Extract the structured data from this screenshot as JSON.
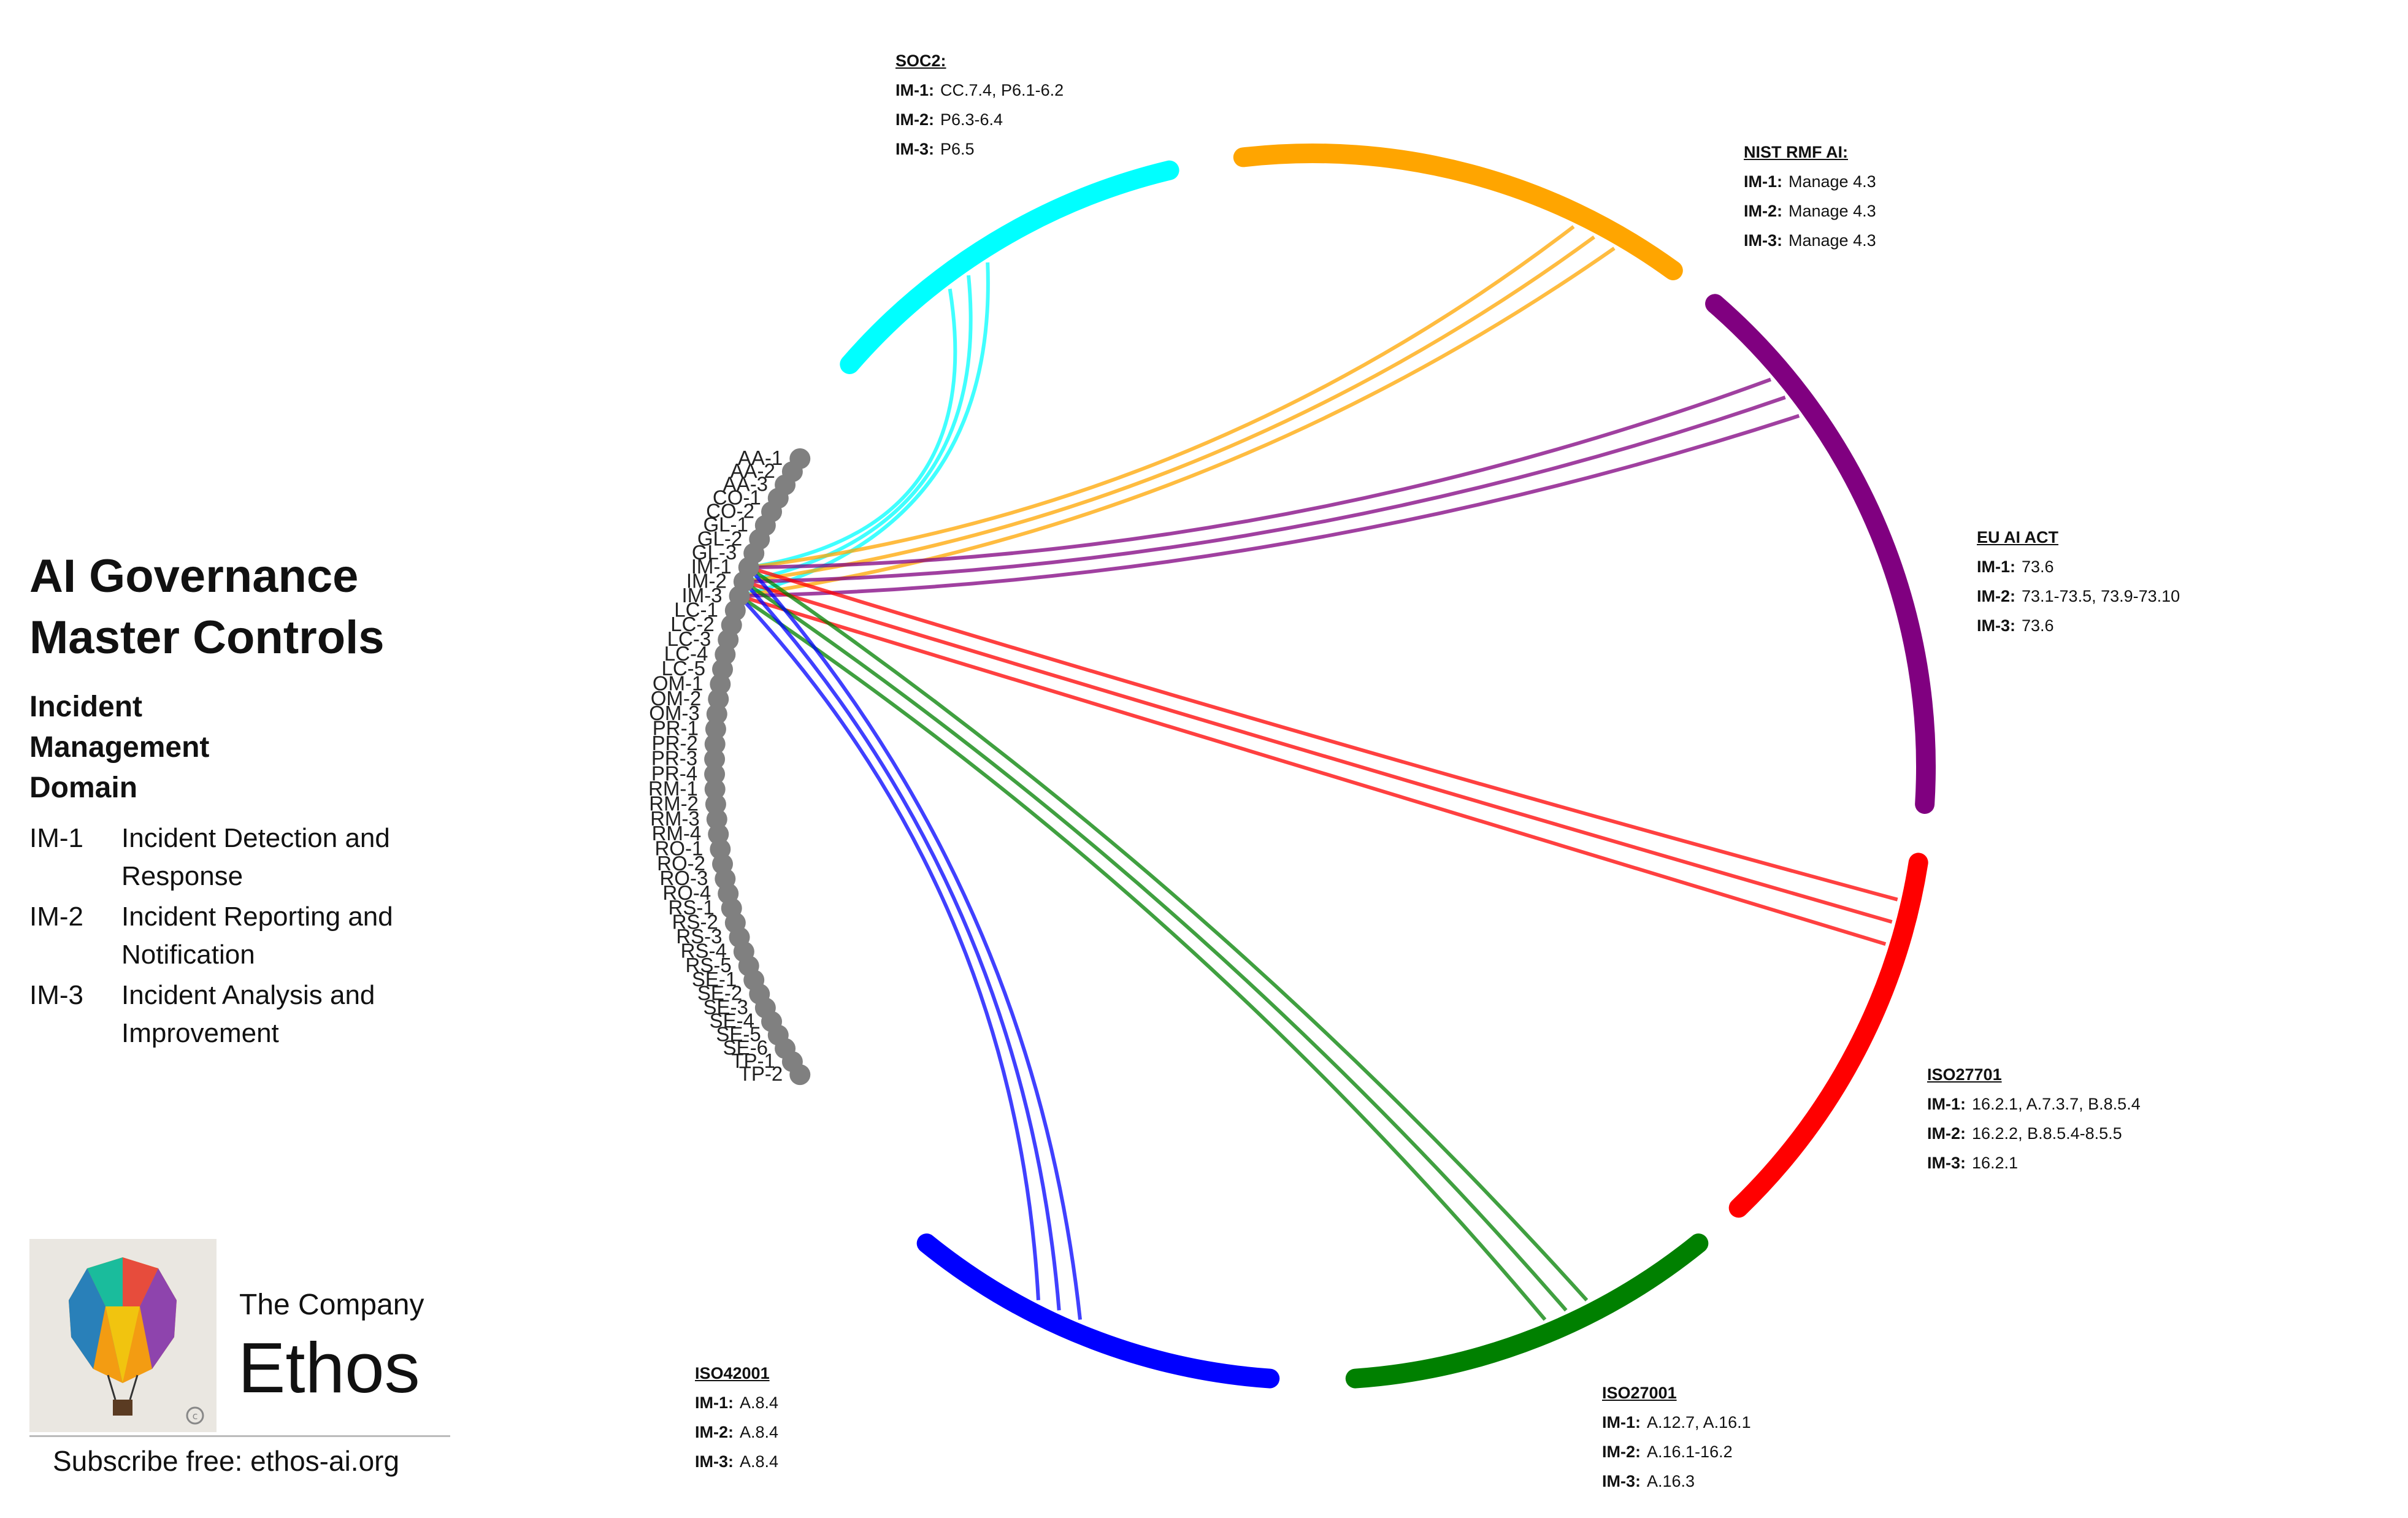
{
  "sidebar": {
    "title_line1": "AI Governance",
    "title_line2": "Master Controls",
    "domain_heading": "Incident Management Domain",
    "controls": [
      {
        "id": "IM-1",
        "desc": "Incident Detection and Response"
      },
      {
        "id": "IM-2",
        "desc": "Incident Reporting and Notification"
      },
      {
        "id": "IM-3",
        "desc": "Incident Analysis and Improvement"
      }
    ]
  },
  "branding": {
    "logo_icon": "hot-air-balloon-icon",
    "company_label": "The Company",
    "company_name": "Ethos",
    "subscribe": "Subscribe free: ethos-ai.org"
  },
  "nodes": [
    "AA-1",
    "AA-2",
    "AA-3",
    "CO-1",
    "CO-2",
    "GL-1",
    "GL-2",
    "GL-3",
    "IM-1",
    "IM-2",
    "IM-3",
    "LC-1",
    "LC-2",
    "LC-3",
    "LC-4",
    "LC-5",
    "OM-1",
    "OM-2",
    "OM-3",
    "PR-1",
    "PR-2",
    "PR-3",
    "PR-4",
    "RM-1",
    "RM-2",
    "RM-3",
    "RM-4",
    "RO-1",
    "RO-2",
    "RO-3",
    "RO-4",
    "RS-1",
    "RS-2",
    "RS-3",
    "RS-4",
    "RS-5",
    "SE-1",
    "SE-2",
    "SE-3",
    "SE-4",
    "SE-5",
    "SE-6",
    "TP-1",
    "TP-2"
  ],
  "frameworks": [
    {
      "key": "soc2",
      "title": "SOC2:",
      "color": "#00ffff",
      "mappings": [
        {
          "id": "IM-1:",
          "value": "CC.7.4,  P6.1-6.2"
        },
        {
          "id": "IM-2:",
          "value": "P6.3-6.4"
        },
        {
          "id": "IM-3:",
          "value": "P6.5"
        }
      ]
    },
    {
      "key": "nist",
      "title": "NIST RMF AI:",
      "color": "#ffa500",
      "mappings": [
        {
          "id": "IM-1:",
          "value": "Manage 4.3"
        },
        {
          "id": "IM-2:",
          "value": "Manage 4.3"
        },
        {
          "id": "IM-3:",
          "value": "Manage 4.3"
        }
      ]
    },
    {
      "key": "euai",
      "title": "EU AI ACT",
      "color": "#800080",
      "mappings": [
        {
          "id": "IM-1:",
          "value": "73.6"
        },
        {
          "id": "IM-2:",
          "value": "73.1-73.5,  73.9-73.10"
        },
        {
          "id": "IM-3:",
          "value": "73.6"
        }
      ]
    },
    {
      "key": "iso27701",
      "title": "ISO27701",
      "color": "#ff0000",
      "mappings": [
        {
          "id": "IM-1:",
          "value": "16.2.1, A.7.3.7, B.8.5.4"
        },
        {
          "id": "IM-2:",
          "value": "16.2.2,  B.8.5.4-8.5.5"
        },
        {
          "id": "IM-3:",
          "value": "16.2.1"
        }
      ]
    },
    {
      "key": "iso27001",
      "title": "ISO27001",
      "color": "#008000",
      "mappings": [
        {
          "id": "IM-1:",
          "value": "A.12.7,  A.16.1"
        },
        {
          "id": "IM-2:",
          "value": "A.16.1-16.2"
        },
        {
          "id": "IM-3:",
          "value": "A.16.3"
        }
      ]
    },
    {
      "key": "iso42001",
      "title": "ISO42001",
      "color": "#0000ff",
      "mappings": [
        {
          "id": "IM-1:",
          "value": "A.8.4"
        },
        {
          "id": "IM-2:",
          "value": "A.8.4"
        },
        {
          "id": "IM-3:",
          "value": "A.8.4"
        }
      ]
    }
  ]
}
